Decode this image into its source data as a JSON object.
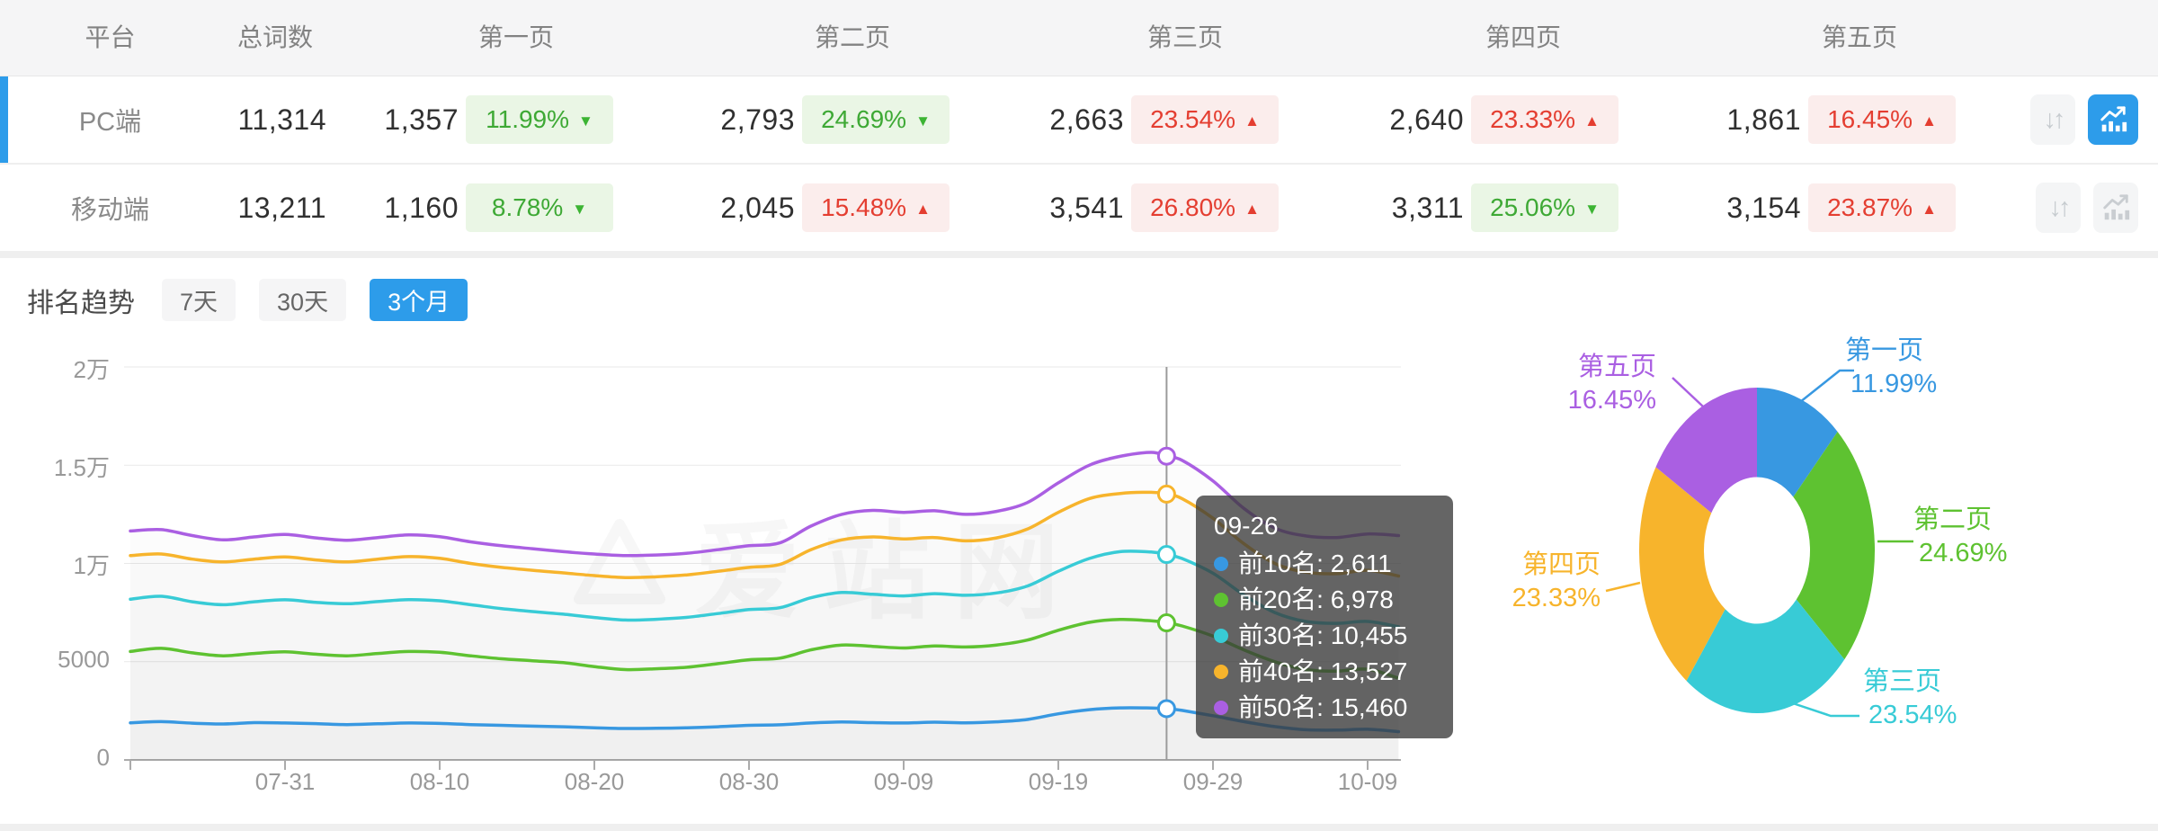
{
  "table": {
    "headers": [
      "平台",
      "总词数",
      "第一页",
      "第二页",
      "第三页",
      "第四页",
      "第五页"
    ],
    "rows": [
      {
        "platform": "PC端",
        "total": "11,314",
        "selected": true,
        "pages": [
          {
            "value": "1,357",
            "pct": "11.99%",
            "dir": "down",
            "tone": "green"
          },
          {
            "value": "2,793",
            "pct": "24.69%",
            "dir": "down",
            "tone": "green"
          },
          {
            "value": "2,663",
            "pct": "23.54%",
            "dir": "up",
            "tone": "red"
          },
          {
            "value": "2,640",
            "pct": "23.33%",
            "dir": "up",
            "tone": "red"
          },
          {
            "value": "1,861",
            "pct": "16.45%",
            "dir": "up",
            "tone": "red"
          }
        ]
      },
      {
        "platform": "移动端",
        "total": "13,211",
        "selected": false,
        "pages": [
          {
            "value": "1,160",
            "pct": "8.78%",
            "dir": "down",
            "tone": "green"
          },
          {
            "value": "2,045",
            "pct": "15.48%",
            "dir": "up",
            "tone": "red"
          },
          {
            "value": "3,541",
            "pct": "26.80%",
            "dir": "up",
            "tone": "red"
          },
          {
            "value": "3,311",
            "pct": "25.06%",
            "dir": "down",
            "tone": "green"
          },
          {
            "value": "3,154",
            "pct": "23.87%",
            "dir": "up",
            "tone": "red"
          }
        ]
      }
    ]
  },
  "trend": {
    "title": "排名趋势",
    "tabs": [
      {
        "label": "7天",
        "active": false
      },
      {
        "label": "30天",
        "active": false
      },
      {
        "label": "3个月",
        "active": true
      }
    ]
  },
  "watermark": "爱站网",
  "colors": {
    "accent": "#2D9CEA",
    "badge_green": "#3EA935",
    "badge_red": "#E43E31"
  },
  "chart_data": [
    {
      "type": "line",
      "title": "排名趋势 3个月",
      "x_ticks": [
        "07-31",
        "08-10",
        "08-20",
        "08-30",
        "09-09",
        "09-19",
        "09-29",
        "10-09"
      ],
      "y_ticks": [
        "0",
        "5000",
        "1万",
        "1.5万",
        "2万"
      ],
      "ylim": [
        0,
        20000
      ],
      "grid": true,
      "hover": {
        "date": "09-26",
        "day": 67,
        "values": [
          "2,611",
          "6,978",
          "10,455",
          "13,527",
          "15,460"
        ]
      },
      "series": [
        {
          "name": "前10名",
          "color": "#3898E1",
          "points": [
            [
              0,
              1890
            ],
            [
              2,
              1950
            ],
            [
              4,
              1870
            ],
            [
              6,
              1830
            ],
            [
              8,
              1900
            ],
            [
              10,
              1880
            ],
            [
              12,
              1850
            ],
            [
              14,
              1800
            ],
            [
              16,
              1840
            ],
            [
              18,
              1880
            ],
            [
              20,
              1860
            ],
            [
              22,
              1800
            ],
            [
              24,
              1760
            ],
            [
              26,
              1720
            ],
            [
              28,
              1690
            ],
            [
              30,
              1640
            ],
            [
              32,
              1600
            ],
            [
              34,
              1610
            ],
            [
              36,
              1640
            ],
            [
              38,
              1690
            ],
            [
              40,
              1760
            ],
            [
              42,
              1790
            ],
            [
              44,
              1880
            ],
            [
              46,
              1930
            ],
            [
              48,
              1900
            ],
            [
              50,
              1880
            ],
            [
              52,
              1920
            ],
            [
              54,
              1890
            ],
            [
              56,
              1940
            ],
            [
              58,
              2060
            ],
            [
              60,
              2350
            ],
            [
              62,
              2560
            ],
            [
              64,
              2650
            ],
            [
              66,
              2645
            ],
            [
              67,
              2611
            ],
            [
              68,
              2520
            ],
            [
              70,
              2250
            ],
            [
              72,
              1950
            ],
            [
              74,
              1700
            ],
            [
              76,
              1540
            ],
            [
              78,
              1520
            ],
            [
              80,
              1560
            ],
            [
              82,
              1440
            ]
          ]
        },
        {
          "name": "前20名",
          "color": "#5EC231",
          "points": [
            [
              0,
              5520
            ],
            [
              2,
              5680
            ],
            [
              4,
              5450
            ],
            [
              6,
              5300
            ],
            [
              8,
              5420
            ],
            [
              10,
              5500
            ],
            [
              12,
              5380
            ],
            [
              14,
              5300
            ],
            [
              16,
              5420
            ],
            [
              18,
              5520
            ],
            [
              20,
              5480
            ],
            [
              22,
              5300
            ],
            [
              24,
              5150
            ],
            [
              26,
              5050
            ],
            [
              28,
              4950
            ],
            [
              30,
              4750
            ],
            [
              32,
              4600
            ],
            [
              34,
              4640
            ],
            [
              36,
              4720
            ],
            [
              38,
              4900
            ],
            [
              40,
              5100
            ],
            [
              42,
              5180
            ],
            [
              44,
              5600
            ],
            [
              46,
              5850
            ],
            [
              48,
              5780
            ],
            [
              50,
              5700
            ],
            [
              52,
              5800
            ],
            [
              54,
              5750
            ],
            [
              56,
              5850
            ],
            [
              58,
              6100
            ],
            [
              60,
              6600
            ],
            [
              62,
              7000
            ],
            [
              64,
              7150
            ],
            [
              66,
              7080
            ],
            [
              67,
              6978
            ],
            [
              68,
              6820
            ],
            [
              70,
              6300
            ],
            [
              72,
              5600
            ],
            [
              74,
              5000
            ],
            [
              76,
              4600
            ],
            [
              78,
              4520
            ],
            [
              80,
              4620
            ],
            [
              82,
              4160
            ]
          ]
        },
        {
          "name": "前30名",
          "color": "#38CBD6",
          "points": [
            [
              0,
              8180
            ],
            [
              2,
              8330
            ],
            [
              4,
              8050
            ],
            [
              6,
              7900
            ],
            [
              8,
              8050
            ],
            [
              10,
              8150
            ],
            [
              12,
              8020
            ],
            [
              14,
              7950
            ],
            [
              16,
              8060
            ],
            [
              18,
              8160
            ],
            [
              20,
              8100
            ],
            [
              22,
              7900
            ],
            [
              24,
              7700
            ],
            [
              26,
              7550
            ],
            [
              28,
              7420
            ],
            [
              30,
              7250
            ],
            [
              32,
              7120
            ],
            [
              34,
              7160
            ],
            [
              36,
              7260
            ],
            [
              38,
              7450
            ],
            [
              40,
              7650
            ],
            [
              42,
              7750
            ],
            [
              44,
              8250
            ],
            [
              46,
              8520
            ],
            [
              48,
              8430
            ],
            [
              50,
              8350
            ],
            [
              52,
              8460
            ],
            [
              54,
              8380
            ],
            [
              56,
              8500
            ],
            [
              58,
              8850
            ],
            [
              60,
              9600
            ],
            [
              62,
              10250
            ],
            [
              64,
              10600
            ],
            [
              66,
              10580
            ],
            [
              67,
              10455
            ],
            [
              68,
              10250
            ],
            [
              70,
              9500
            ],
            [
              72,
              8400
            ],
            [
              74,
              7500
            ],
            [
              76,
              7050
            ],
            [
              78,
              6950
            ],
            [
              80,
              7050
            ],
            [
              82,
              6780
            ]
          ]
        },
        {
          "name": "前40名",
          "color": "#F7B42C",
          "points": [
            [
              0,
              10400
            ],
            [
              2,
              10480
            ],
            [
              4,
              10220
            ],
            [
              6,
              10080
            ],
            [
              8,
              10220
            ],
            [
              10,
              10330
            ],
            [
              12,
              10180
            ],
            [
              14,
              10080
            ],
            [
              16,
              10220
            ],
            [
              18,
              10350
            ],
            [
              20,
              10260
            ],
            [
              22,
              10000
            ],
            [
              24,
              9800
            ],
            [
              26,
              9650
            ],
            [
              28,
              9520
            ],
            [
              30,
              9380
            ],
            [
              32,
              9280
            ],
            [
              34,
              9320
            ],
            [
              36,
              9420
            ],
            [
              38,
              9600
            ],
            [
              40,
              9800
            ],
            [
              42,
              9950
            ],
            [
              44,
              10700
            ],
            [
              46,
              11200
            ],
            [
              48,
              11350
            ],
            [
              50,
              11250
            ],
            [
              52,
              11320
            ],
            [
              54,
              11150
            ],
            [
              56,
              11300
            ],
            [
              58,
              11750
            ],
            [
              60,
              12600
            ],
            [
              62,
              13300
            ],
            [
              64,
              13560
            ],
            [
              66,
              13620
            ],
            [
              67,
              13527
            ],
            [
              68,
              13300
            ],
            [
              70,
              12300
            ],
            [
              72,
              11000
            ],
            [
              74,
              10000
            ],
            [
              76,
              9550
            ],
            [
              78,
              9480
            ],
            [
              80,
              9650
            ],
            [
              82,
              9360
            ]
          ]
        },
        {
          "name": "前50名",
          "color": "#AA5FE2",
          "points": [
            [
              0,
              11650
            ],
            [
              2,
              11720
            ],
            [
              4,
              11420
            ],
            [
              6,
              11200
            ],
            [
              8,
              11350
            ],
            [
              10,
              11480
            ],
            [
              12,
              11300
            ],
            [
              14,
              11180
            ],
            [
              16,
              11320
            ],
            [
              18,
              11450
            ],
            [
              20,
              11360
            ],
            [
              22,
              11100
            ],
            [
              24,
              10900
            ],
            [
              26,
              10750
            ],
            [
              28,
              10600
            ],
            [
              30,
              10480
            ],
            [
              32,
              10400
            ],
            [
              34,
              10430
            ],
            [
              36,
              10520
            ],
            [
              38,
              10700
            ],
            [
              40,
              10900
            ],
            [
              42,
              11050
            ],
            [
              44,
              11900
            ],
            [
              46,
              12500
            ],
            [
              48,
              12700
            ],
            [
              50,
              12600
            ],
            [
              52,
              12680
            ],
            [
              54,
              12500
            ],
            [
              56,
              12650
            ],
            [
              58,
              13100
            ],
            [
              60,
              14100
            ],
            [
              62,
              15000
            ],
            [
              64,
              15450
            ],
            [
              66,
              15650
            ],
            [
              67,
              15460
            ],
            [
              68,
              15250
            ],
            [
              70,
              14200
            ],
            [
              72,
              12800
            ],
            [
              74,
              11800
            ],
            [
              76,
              11400
            ],
            [
              78,
              11320
            ],
            [
              80,
              11500
            ],
            [
              82,
              11420
            ]
          ]
        }
      ]
    },
    {
      "type": "donut",
      "slices": [
        {
          "label": "第一页",
          "pct": 11.99,
          "pct_text": "11.99%",
          "color": "#3898E1"
        },
        {
          "label": "第二页",
          "pct": 24.69,
          "pct_text": "24.69%",
          "color": "#5EC231"
        },
        {
          "label": "第三页",
          "pct": 23.54,
          "pct_text": "23.54%",
          "color": "#38CBD6"
        },
        {
          "label": "第四页",
          "pct": 23.33,
          "pct_text": "23.33%",
          "color": "#F7B42C"
        },
        {
          "label": "第五页",
          "pct": 16.45,
          "pct_text": "16.45%",
          "color": "#AA5FE2"
        }
      ]
    }
  ]
}
